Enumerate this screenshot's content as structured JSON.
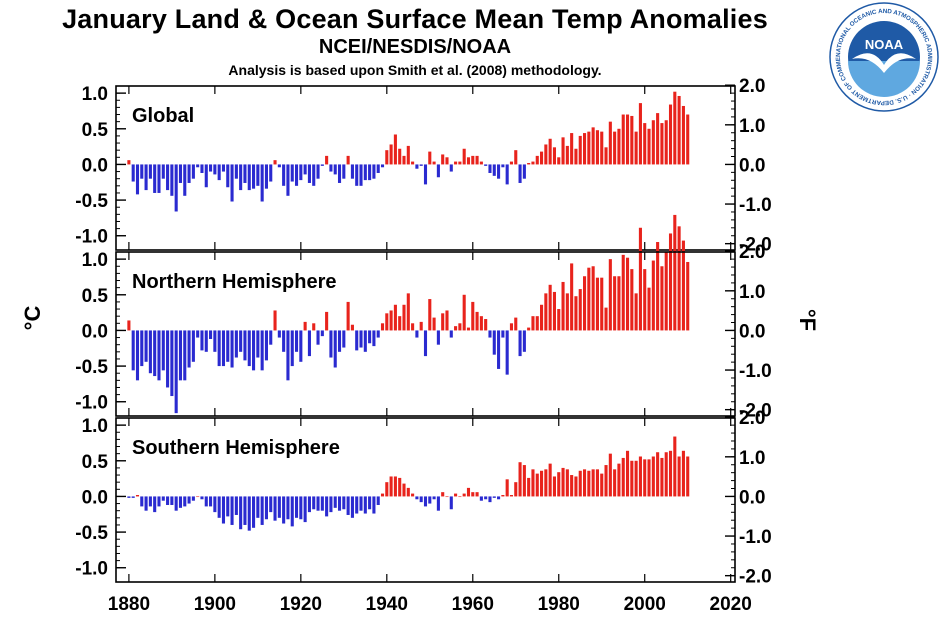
{
  "header": {
    "title": "January Land & Ocean Surface Mean Temp Anomalies",
    "subtitle": "NCEI/NESDIS/NOAA",
    "note": "Analysis is based upon Smith et al. (2008) methodology."
  },
  "logo": {
    "text": "NOAA",
    "ring_text": "NATIONAL OCEANIC AND ATMOSPHERIC ADMINISTRATION · U.S. DEPARTMENT OF COMMERCE",
    "icon": "noaa-logo-icon"
  },
  "colors": {
    "positive": "#e8231c",
    "negative": "#2a2ad0",
    "axis": "#000000",
    "logo_blue": "#1f5aa6",
    "logo_light": "#5fa8e0"
  },
  "chart_data": {
    "type": "bar",
    "x_start": 1880,
    "xlim": [
      1877,
      2021
    ],
    "xticks": [
      1880,
      1900,
      1920,
      1940,
      1960,
      1980,
      2000,
      2020
    ],
    "ylabel_left": "°C",
    "ylabel_right": "°F",
    "panels": [
      {
        "name": "Global",
        "ylim_c": [
          -1.2,
          1.1
        ],
        "yticks_c": [
          "1.0",
          "0.5",
          "0.0",
          "-0.5",
          "-1.0"
        ],
        "yticks_f": [
          "2.0",
          "1.0",
          "0.0",
          "-1.0",
          "-2.0"
        ],
        "values": [
          0.06,
          -0.24,
          -0.42,
          -0.2,
          -0.36,
          -0.2,
          -0.4,
          -0.4,
          -0.2,
          -0.36,
          -0.44,
          -0.66,
          -0.26,
          -0.44,
          -0.26,
          -0.2,
          -0.04,
          -0.12,
          -0.32,
          -0.1,
          -0.14,
          -0.22,
          -0.1,
          -0.32,
          -0.52,
          -0.2,
          -0.36,
          -0.26,
          -0.36,
          -0.34,
          -0.3,
          -0.52,
          -0.34,
          -0.24,
          0.06,
          -0.04,
          -0.3,
          -0.44,
          -0.24,
          -0.3,
          -0.22,
          -0.14,
          -0.26,
          -0.3,
          -0.2,
          -0.02,
          0.12,
          -0.1,
          -0.14,
          -0.26,
          -0.2,
          0.12,
          -0.2,
          -0.3,
          -0.3,
          -0.22,
          -0.22,
          -0.2,
          -0.12,
          -0.04,
          0.2,
          0.28,
          0.42,
          0.22,
          0.12,
          0.26,
          0.04,
          -0.06,
          -0.02,
          -0.28,
          0.18,
          0.04,
          -0.18,
          0.14,
          0.1,
          -0.1,
          0.04,
          0.04,
          0.22,
          0.1,
          0.12,
          0.12,
          0.04,
          -0.02,
          -0.12,
          -0.16,
          -0.2,
          -0.04,
          -0.28,
          0.04,
          0.2,
          -0.26,
          -0.2,
          0.02,
          0.04,
          0.12,
          0.18,
          0.28,
          0.36,
          0.24,
          0.1,
          0.38,
          0.26,
          0.44,
          0.22,
          0.4,
          0.44,
          0.46,
          0.52,
          0.48,
          0.46,
          0.24,
          0.6,
          0.46,
          0.5,
          0.7,
          0.7,
          0.68,
          0.46,
          0.86,
          0.58,
          0.5,
          0.62,
          0.72,
          0.58,
          0.62,
          0.84,
          1.02,
          0.96,
          0.82,
          0.7
        ]
      },
      {
        "name": "Northern Hemisphere",
        "ylim_c": [
          -1.2,
          1.1
        ],
        "yticks_c": [
          "1.0",
          "0.5",
          "0.0",
          "-0.5",
          "-1.0"
        ],
        "yticks_f": [
          "2.0",
          "1.0",
          "0.0",
          "-1.0",
          "-2.0"
        ],
        "values": [
          0.14,
          -0.56,
          -0.7,
          -0.5,
          -0.44,
          -0.6,
          -0.64,
          -0.7,
          -0.56,
          -0.8,
          -0.92,
          -1.16,
          -0.7,
          -0.7,
          -0.52,
          -0.44,
          -0.1,
          -0.28,
          -0.3,
          -0.12,
          -0.3,
          -0.5,
          -0.5,
          -0.44,
          -0.52,
          -0.38,
          -0.3,
          -0.42,
          -0.5,
          -0.56,
          -0.38,
          -0.56,
          -0.42,
          -0.2,
          0.28,
          -0.1,
          -0.3,
          -0.7,
          -0.5,
          -0.3,
          -0.44,
          0.12,
          -0.36,
          0.1,
          -0.2,
          -0.08,
          0.26,
          -0.38,
          -0.52,
          -0.3,
          -0.24,
          0.4,
          0.08,
          -0.28,
          -0.24,
          -0.3,
          -0.18,
          -0.22,
          -0.1,
          0.1,
          0.24,
          0.28,
          0.36,
          0.2,
          0.36,
          0.52,
          0.1,
          -0.1,
          0.12,
          -0.36,
          0.44,
          0.18,
          -0.2,
          0.24,
          0.28,
          -0.1,
          0.06,
          0.1,
          0.5,
          0.04,
          0.4,
          0.26,
          0.2,
          0.16,
          -0.1,
          -0.34,
          -0.54,
          -0.1,
          -0.62,
          0.1,
          0.18,
          -0.36,
          -0.3,
          0.04,
          0.2,
          0.2,
          0.36,
          0.52,
          0.64,
          0.54,
          0.3,
          0.68,
          0.52,
          0.94,
          0.48,
          0.58,
          0.76,
          0.88,
          0.9,
          0.74,
          0.74,
          0.32,
          1.0,
          0.76,
          0.76,
          1.06,
          1.02,
          0.86,
          0.52,
          1.44,
          0.86,
          0.6,
          0.98,
          1.24,
          0.9,
          1.1,
          1.36,
          1.62,
          1.46,
          1.26,
          0.96
        ]
      },
      {
        "name": "Southern Hemisphere",
        "ylim_c": [
          -1.2,
          1.1
        ],
        "yticks_c": [
          "1.0",
          "0.5",
          "0.0",
          "-0.5",
          "-1.0"
        ],
        "yticks_f": [
          "2.0",
          "1.0",
          "0.0",
          "-1.0",
          "-2.0"
        ],
        "values": [
          -0.02,
          -0.02,
          0.02,
          -0.14,
          -0.2,
          -0.14,
          -0.22,
          -0.14,
          -0.06,
          -0.12,
          -0.12,
          -0.2,
          -0.16,
          -0.14,
          -0.1,
          -0.06,
          0.0,
          -0.04,
          -0.14,
          -0.14,
          -0.22,
          -0.3,
          -0.38,
          -0.28,
          -0.4,
          -0.26,
          -0.46,
          -0.4,
          -0.48,
          -0.44,
          -0.3,
          -0.4,
          -0.32,
          -0.22,
          -0.34,
          -0.3,
          -0.38,
          -0.32,
          -0.42,
          -0.3,
          -0.32,
          -0.36,
          -0.22,
          -0.18,
          -0.2,
          -0.2,
          -0.28,
          -0.22,
          -0.16,
          -0.2,
          -0.18,
          -0.26,
          -0.3,
          -0.24,
          -0.2,
          -0.24,
          -0.18,
          -0.24,
          -0.12,
          0.04,
          0.2,
          0.28,
          0.28,
          0.26,
          0.18,
          0.12,
          0.04,
          -0.04,
          -0.08,
          -0.14,
          -0.1,
          -0.04,
          -0.2,
          0.06,
          0.0,
          -0.18,
          0.04,
          0.0,
          0.04,
          0.12,
          0.06,
          0.06,
          -0.06,
          -0.04,
          -0.08,
          -0.02,
          -0.04,
          0.02,
          0.24,
          0.02,
          0.2,
          0.48,
          0.44,
          0.26,
          0.38,
          0.32,
          0.36,
          0.38,
          0.46,
          0.28,
          0.34,
          0.4,
          0.38,
          0.3,
          0.28,
          0.36,
          0.38,
          0.36,
          0.38,
          0.38,
          0.32,
          0.44,
          0.6,
          0.38,
          0.46,
          0.54,
          0.64,
          0.5,
          0.5,
          0.56,
          0.52,
          0.52,
          0.56,
          0.62,
          0.54,
          0.62,
          0.64,
          0.84,
          0.56,
          0.64,
          0.56
        ]
      }
    ]
  }
}
